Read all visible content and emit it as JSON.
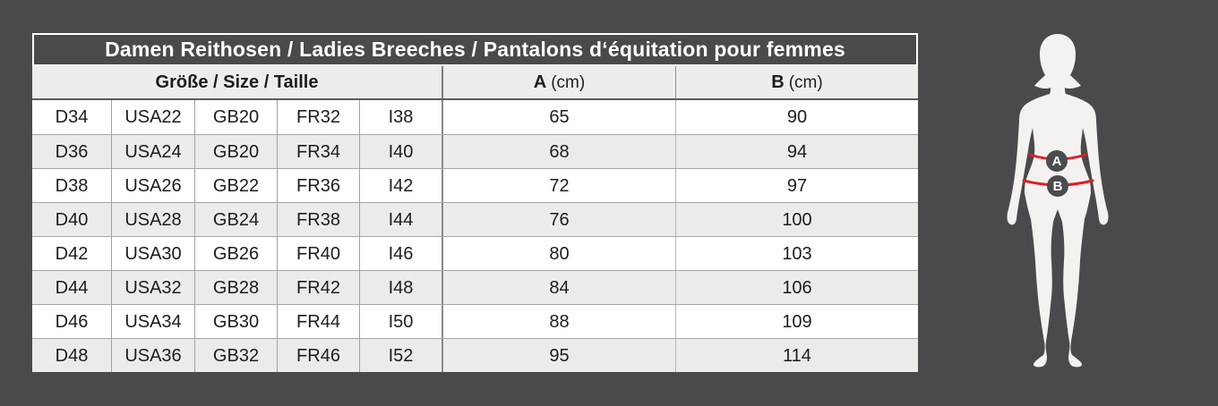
{
  "page": {
    "background": "#4a4a4c"
  },
  "table": {
    "title": "Damen Reithosen / Ladies Breeches / Pantalons d‘équitation pour femmes",
    "size_header": "Größe / Size / Taille",
    "col_a": {
      "label": "A",
      "unit": "(cm)"
    },
    "col_b": {
      "label": "B",
      "unit": "(cm)"
    }
  },
  "chart_data": {
    "type": "table",
    "title": "Damen Reithosen / Ladies Breeches / Pantalons d‘équitation pour femmes",
    "columns": [
      "D",
      "USA",
      "GB",
      "FR",
      "I",
      "A (cm)",
      "B (cm)"
    ],
    "rows": [
      [
        "D34",
        "USA22",
        "GB20",
        "FR32",
        "I38",
        "65",
        "90"
      ],
      [
        "D36",
        "USA24",
        "GB20",
        "FR34",
        "I40",
        "68",
        "94"
      ],
      [
        "D38",
        "USA26",
        "GB22",
        "FR36",
        "I42",
        "72",
        "97"
      ],
      [
        "D40",
        "USA28",
        "GB24",
        "FR38",
        "I44",
        "76",
        "100"
      ],
      [
        "D42",
        "USA30",
        "GB26",
        "FR40",
        "I46",
        "80",
        "103"
      ],
      [
        "D44",
        "USA32",
        "GB28",
        "FR42",
        "I48",
        "84",
        "106"
      ],
      [
        "D46",
        "USA34",
        "GB30",
        "FR44",
        "I50",
        "88",
        "109"
      ],
      [
        "D48",
        "USA36",
        "GB32",
        "FR46",
        "I52",
        "95",
        "114"
      ]
    ]
  },
  "figure": {
    "marker_a": "A",
    "marker_b": "B",
    "colors": {
      "body": "#f3f2f0",
      "measure_line": "#dd1f26",
      "marker_bg": "#4b4c4e",
      "marker_text": "#ffffff"
    }
  }
}
